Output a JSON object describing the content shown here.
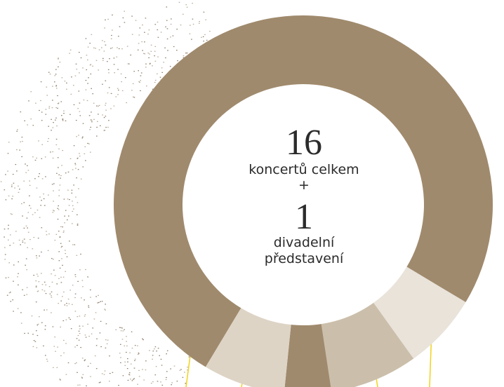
{
  "chart_data": {
    "type": "donut",
    "values": [
      75,
      6.5,
      7.5,
      4,
      7
    ],
    "colors": [
      "#a08a6d",
      "#e9e3da",
      "#cbbfab",
      "#a08a6d",
      "#ddd4c6"
    ],
    "center_text": {
      "count_concerts": "16",
      "concerts_label": "koncertů celkem",
      "plus": "+",
      "count_theatre": "1",
      "theatre_label_1": "divadelní",
      "theatre_label_2": "představení"
    }
  }
}
